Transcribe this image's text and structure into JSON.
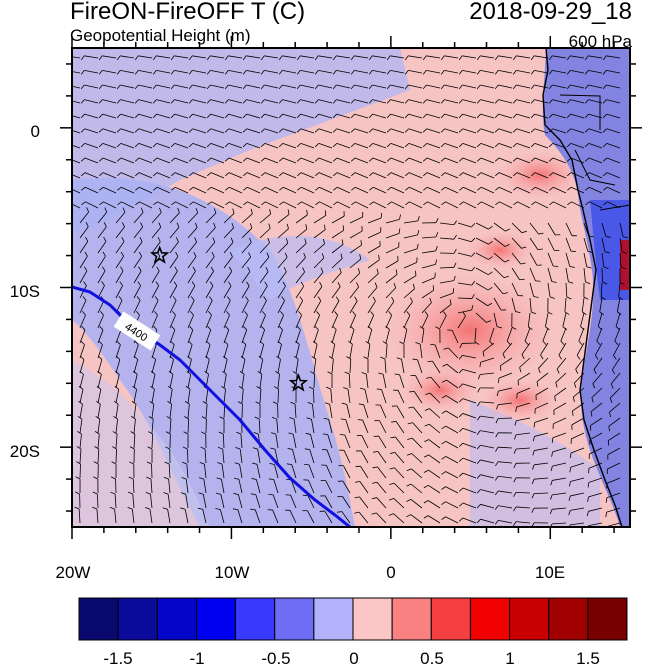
{
  "header": {
    "title": "FireON-FireOFF T (C)",
    "subtitle": "Geopotential Height (m)",
    "datetime": "2018-09-29_18",
    "level": "600 hPa"
  },
  "map": {
    "lon_range": [
      -20,
      15
    ],
    "lat_range": [
      -25,
      5
    ],
    "x_ticks": [
      "20W",
      "10W",
      "0",
      "10E"
    ],
    "y_ticks": [
      "0",
      "10S",
      "20S"
    ],
    "contour_label": "4400",
    "markers": [
      {
        "name": "star-1",
        "lon": -14.5,
        "lat": -8
      },
      {
        "name": "star-2",
        "lon": -5.8,
        "lat": -16
      }
    ]
  },
  "colorbar": {
    "colors": [
      "#0a0a6e",
      "#0b0b9c",
      "#0606c8",
      "#0000f0",
      "#3a3aff",
      "#6c6cf4",
      "#b2b2fa",
      "#fcc6c6",
      "#f88282",
      "#f44040",
      "#f00000",
      "#c80000",
      "#a00000",
      "#780000"
    ],
    "labels": [
      "-1.5",
      "-1",
      "-0.5",
      "0",
      "0.5",
      "1",
      "1.5"
    ]
  }
}
